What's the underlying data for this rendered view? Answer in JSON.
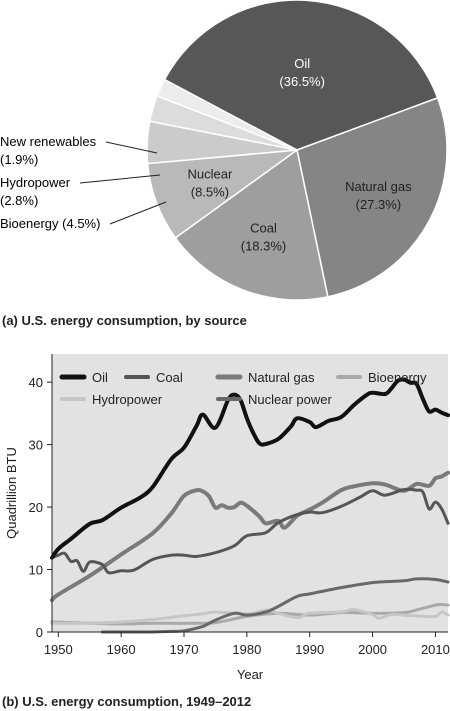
{
  "chart_data": [
    {
      "type": "pie",
      "caption": "(a) U.S. energy consumption, by source",
      "slices": [
        {
          "name": "Oil",
          "value": 36.5,
          "label_pct": "(36.5%)",
          "color": "#575757",
          "text_color": "#ffffff"
        },
        {
          "name": "Natural gas",
          "value": 27.3,
          "label_pct": "(27.3%)",
          "color": "#858585",
          "text_color": "#222222"
        },
        {
          "name": "Coal",
          "value": 18.3,
          "label_pct": "(18.3%)",
          "color": "#9e9e9e",
          "text_color": "#222222"
        },
        {
          "name": "Nuclear",
          "value": 8.5,
          "label_pct": "(8.5%)",
          "color": "#b9b9b9",
          "text_color": "#222222"
        },
        {
          "name": "Bioenergy",
          "value": 4.5,
          "label_pct": "(4.5%)",
          "color": "#cbcbcb",
          "text_color": "#222222"
        },
        {
          "name": "Hydropower",
          "value": 2.8,
          "label_pct": "(2.8%)",
          "color": "#dcdcdc",
          "text_color": "#222222"
        },
        {
          "name": "New renewables",
          "value": 1.9,
          "label_pct": "(1.9%)",
          "color": "#ececec",
          "text_color": "#222222"
        }
      ],
      "outside_labels": {
        "new_renewables": {
          "line1": "New renewables",
          "line2": "(1.9%)"
        },
        "hydropower": {
          "line1": "Hydropower",
          "line2": "(2.8%)"
        },
        "bioenergy": {
          "line1": "Bioenergy (4.5%)"
        }
      }
    },
    {
      "type": "line",
      "caption": "(b) U.S. energy consumption, 1949–2012",
      "xlabel": "Year",
      "ylabel": "Quadrillion BTU",
      "xlim": [
        1949,
        2012
      ],
      "ylim": [
        0,
        40
      ],
      "xticks": [
        1950,
        1960,
        1970,
        1980,
        1990,
        2000,
        2010
      ],
      "yticks": [
        0,
        10,
        20,
        30,
        40
      ],
      "grid": false,
      "legend_position": "top",
      "series": [
        {
          "name": "Oil",
          "color": "#111111",
          "width": 4,
          "x": [
            1949,
            1950,
            1952,
            1955,
            1957,
            1960,
            1963,
            1965,
            1968,
            1970,
            1972,
            1973,
            1975,
            1977,
            1978,
            1979,
            1980,
            1981,
            1982,
            1983,
            1985,
            1987,
            1988,
            1990,
            1991,
            1993,
            1995,
            1997,
            1999,
            2000,
            2002,
            2003,
            2004,
            2005,
            2006,
            2007,
            2008,
            2009,
            2010,
            2011,
            2012
          ],
          "y": [
            11.9,
            13.3,
            14.9,
            17.3,
            17.9,
            19.9,
            21.5,
            23.2,
            27.7,
            29.5,
            33,
            34.8,
            32.7,
            37.1,
            38,
            37.1,
            34.2,
            31.9,
            30.2,
            30.1,
            30.9,
            32.9,
            34.2,
            33.6,
            32.8,
            33.8,
            34.4,
            36.3,
            37.9,
            38.3,
            38.1,
            39,
            40.2,
            40.4,
            39.9,
            39.7,
            37.3,
            35.3,
            35.6,
            35.1,
            34.7
          ]
        },
        {
          "name": "Coal",
          "color": "#555555",
          "width": 3,
          "x": [
            1949,
            1950,
            1951,
            1952,
            1953,
            1954,
            1955,
            1957,
            1958,
            1960,
            1962,
            1965,
            1968,
            1970,
            1972,
            1975,
            1978,
            1980,
            1983,
            1985,
            1988,
            1990,
            1992,
            1995,
            1998,
            2000,
            2002,
            2005,
            2007,
            2008,
            2009,
            2010,
            2011,
            2012
          ],
          "y": [
            11.9,
            12.3,
            12.6,
            11.3,
            11.4,
            9.7,
            11.2,
            10.8,
            9.5,
            9.8,
            9.9,
            11.6,
            12.3,
            12.3,
            12.1,
            12.7,
            13.8,
            15.4,
            15.9,
            17.5,
            18.8,
            19.2,
            19.1,
            20.1,
            21.6,
            22.6,
            21.9,
            22.8,
            22.7,
            22.4,
            19.7,
            20.8,
            19.7,
            17.4
          ]
        },
        {
          "name": "Natural gas",
          "color": "#7a7a7a",
          "width": 4,
          "x": [
            1949,
            1950,
            1955,
            1960,
            1965,
            1968,
            1970,
            1972,
            1973,
            1974,
            1975,
            1976,
            1977,
            1978,
            1979,
            1980,
            1982,
            1983,
            1985,
            1986,
            1988,
            1990,
            1992,
            1995,
            1997,
            2000,
            2002,
            2005,
            2007,
            2009,
            2010,
            2011,
            2012
          ],
          "y": [
            5.1,
            6,
            9,
            12.4,
            15.8,
            19,
            21.8,
            22.7,
            22.5,
            21.7,
            19.9,
            20.3,
            19.9,
            20,
            20.7,
            20.2,
            18.5,
            17.4,
            17.8,
            16.7,
            18.6,
            19.6,
            20.7,
            22.7,
            23.3,
            23.8,
            23.6,
            22.6,
            23.7,
            23.4,
            24.6,
            24.9,
            25.5
          ]
        },
        {
          "name": "Bioenergy",
          "color": "#a9a9a9",
          "width": 3,
          "x": [
            1949,
            1955,
            1960,
            1965,
            1970,
            1975,
            1980,
            1985,
            1990,
            1995,
            2000,
            2005,
            2008,
            2010,
            2011,
            2012
          ],
          "y": [
            1.6,
            1.4,
            1.3,
            1.4,
            1.4,
            1.5,
            2.5,
            3,
            2.7,
            3.1,
            3,
            3.1,
            3.8,
            4.3,
            4.4,
            4.3
          ]
        },
        {
          "name": "Hydropower",
          "color": "#c6c6c6",
          "width": 3,
          "x": [
            1949,
            1955,
            1960,
            1965,
            1970,
            1973,
            1975,
            1980,
            1983,
            1985,
            1988,
            1990,
            1995,
            1997,
            2000,
            2001,
            2003,
            2005,
            2008,
            2010,
            2011,
            2012
          ],
          "y": [
            1.4,
            1.4,
            1.6,
            2,
            2.6,
            2.9,
            3.2,
            2.9,
            3.5,
            3,
            2.3,
            3,
            3.2,
            3.6,
            2.8,
            2.2,
            2.8,
            2.7,
            2.5,
            2.5,
            3.2,
            2.7
          ]
        },
        {
          "name": "Nuclear power",
          "color": "#686868",
          "width": 3,
          "x": [
            1957,
            1960,
            1965,
            1968,
            1970,
            1973,
            1975,
            1978,
            1980,
            1983,
            1985,
            1988,
            1990,
            1995,
            2000,
            2005,
            2007,
            2010,
            2012
          ],
          "y": [
            0,
            0,
            0,
            0.1,
            0.2,
            0.9,
            1.9,
            3,
            2.7,
            3.2,
            4.1,
            5.7,
            6.1,
            7.1,
            7.9,
            8.2,
            8.5,
            8.4,
            8
          ]
        }
      ]
    }
  ]
}
